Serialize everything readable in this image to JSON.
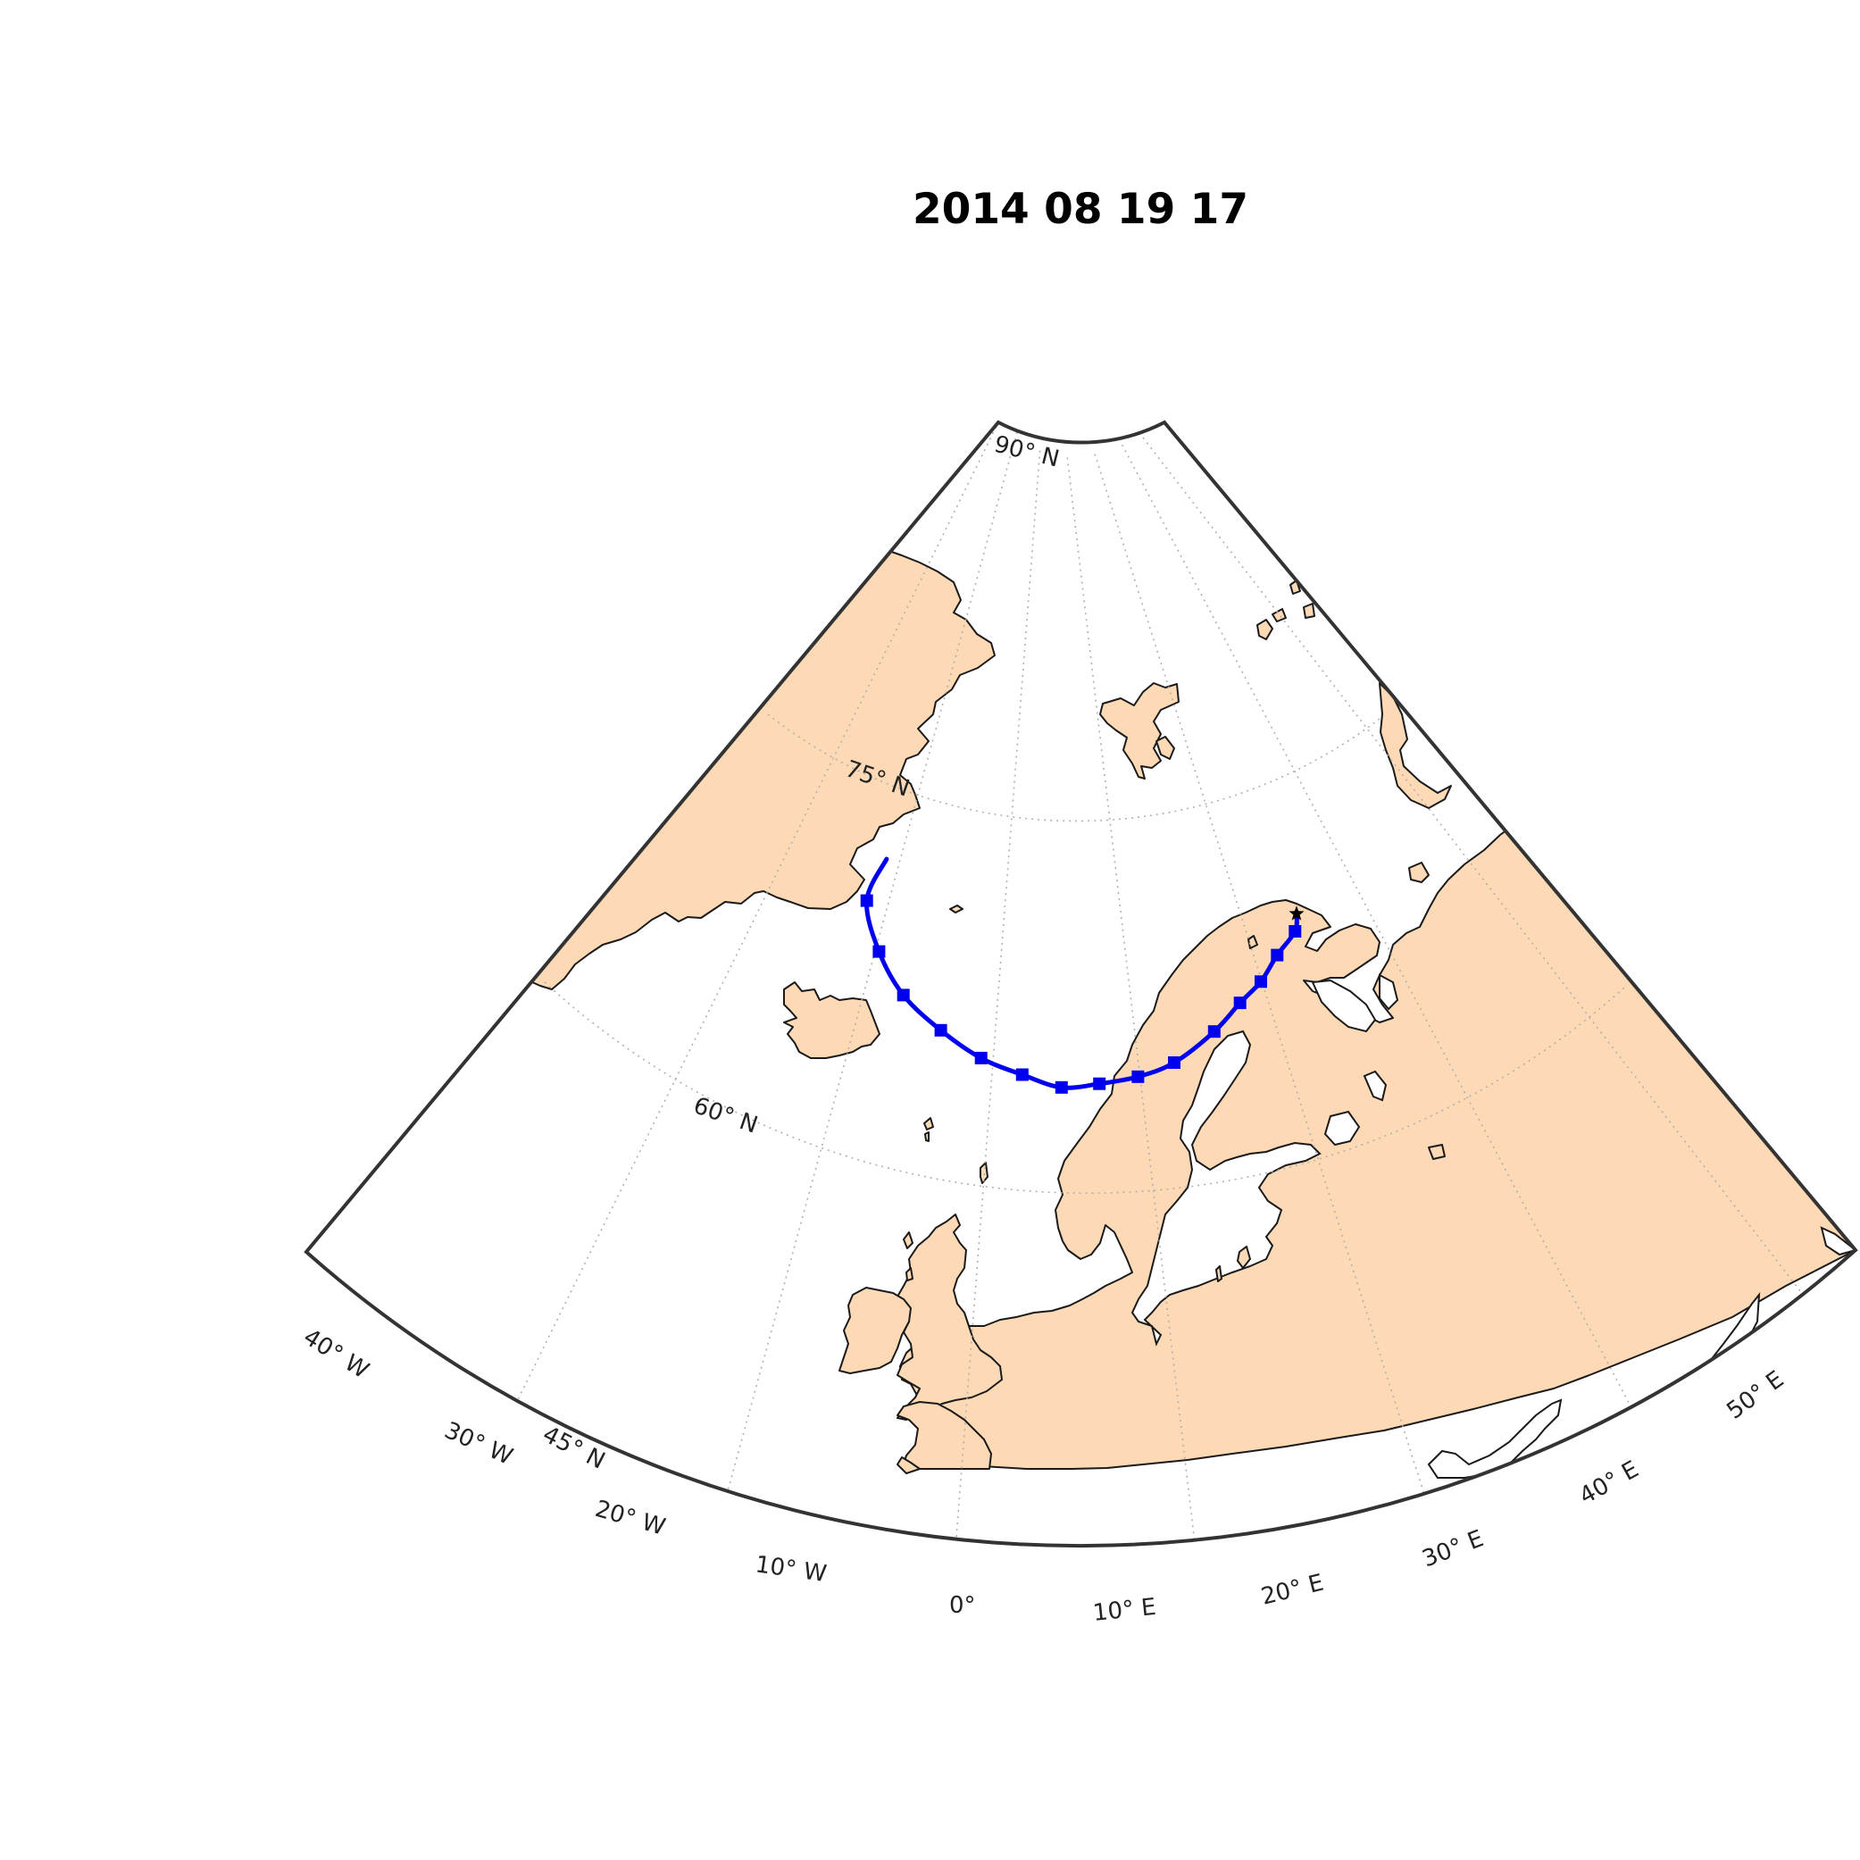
{
  "title": "2014 08 19 17",
  "colors": {
    "land": "#fdd9b5",
    "ocean": "#ffffff",
    "track": "#0000ee",
    "marker": "#0000ee",
    "coastline": "#1a1a1a",
    "graticule": "#b0b0b0"
  },
  "map": {
    "projection": "conic",
    "lat_range_deg": [
      40,
      90
    ],
    "lon_range_deg": [
      -40,
      55
    ],
    "lat_lines": [
      {
        "lat": 45,
        "label": "45$^\\circ$N"
      },
      {
        "lat": 60,
        "label": "60$^\\circ$N"
      },
      {
        "lat": 75,
        "label": "75$^\\circ$N"
      },
      {
        "lat": 90,
        "label": "90$^\\circ$N"
      }
    ],
    "lon_lines": [
      {
        "lon": -40,
        "label": "40$^\\circ$W"
      },
      {
        "lon": -30,
        "label": "30$^\\circ$W"
      },
      {
        "lon": -20,
        "label": "20$^\\circ$W"
      },
      {
        "lon": -10,
        "label": "10$^\\circ$W"
      },
      {
        "lon": 0,
        "label": "0$^\\circ$"
      },
      {
        "lon": 10,
        "label": "10$^\\circ$E"
      },
      {
        "lon": 20,
        "label": "20$^\\circ$E"
      },
      {
        "lon": 30,
        "label": "30$^\\circ$E"
      },
      {
        "lon": 40,
        "label": "40$^\\circ$E"
      },
      {
        "lon": 50,
        "label": "50$^\\circ$E"
      }
    ]
  },
  "lat_labels_text": {
    "l45": "45° N",
    "l60": "60° N",
    "l75": "75° N",
    "l90": "90° N"
  },
  "lon_labels_text": {
    "w40": "40° W",
    "w30": "30° W",
    "w20": "20° W",
    "w10": "10° W",
    "zero": "0°",
    "e10": "10° E",
    "e20": "20° E",
    "e30": "30° E",
    "e40": "40° E",
    "e50": "50° E"
  },
  "trajectory": {
    "start_marker": "star",
    "point_marker": "square",
    "start": {
      "lat": 61.5,
      "lon": 23.5
    },
    "points": [
      {
        "lat": 60.6,
        "lon": 22.8
      },
      {
        "lat": 59.6,
        "lon": 20.3
      },
      {
        "lat": 58.4,
        "lon": 18.0
      },
      {
        "lat": 57.5,
        "lon": 15.5
      },
      {
        "lat": 56.2,
        "lon": 12.5
      },
      {
        "lat": 54.8,
        "lon": 8.3
      },
      {
        "lat": 54.2,
        "lon": 4.8
      },
      {
        "lat": 53.9,
        "lon": 1.2
      },
      {
        "lat": 53.7,
        "lon": -2.3
      },
      {
        "lat": 54.3,
        "lon": -6.0
      },
      {
        "lat": 55.0,
        "lon": -10.0
      },
      {
        "lat": 56.2,
        "lon": -14.2
      },
      {
        "lat": 57.7,
        "lon": -18.5
      },
      {
        "lat": 59.7,
        "lon": -22.0
      },
      {
        "lat": 62.2,
        "lon": -24.8
      }
    ],
    "end": {
      "lat": 64.7,
      "lon": -24.0
    }
  }
}
